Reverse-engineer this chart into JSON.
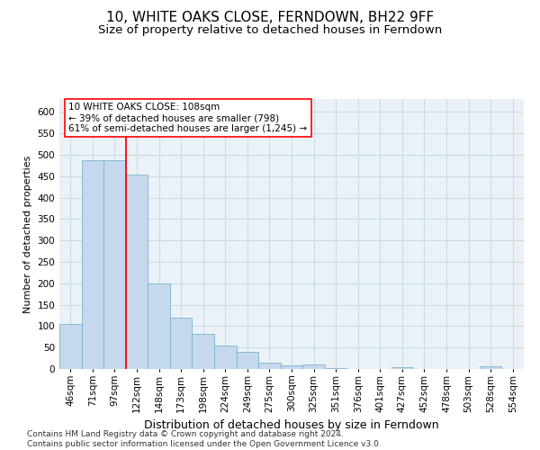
{
  "title": "10, WHITE OAKS CLOSE, FERNDOWN, BH22 9FF",
  "subtitle": "Size of property relative to detached houses in Ferndown",
  "xlabel": "Distribution of detached houses by size in Ferndown",
  "ylabel": "Number of detached properties",
  "categories": [
    "46sqm",
    "71sqm",
    "97sqm",
    "122sqm",
    "148sqm",
    "173sqm",
    "198sqm",
    "224sqm",
    "249sqm",
    "275sqm",
    "300sqm",
    "325sqm",
    "351sqm",
    "376sqm",
    "401sqm",
    "427sqm",
    "452sqm",
    "478sqm",
    "503sqm",
    "528sqm",
    "554sqm"
  ],
  "values": [
    105,
    487,
    487,
    453,
    200,
    120,
    82,
    55,
    40,
    14,
    9,
    11,
    2,
    0,
    0,
    5,
    0,
    0,
    0,
    6,
    0
  ],
  "bar_color": "#c5d8ed",
  "bar_edge_color": "#7ab3cc",
  "vline_x_index": 2.5,
  "vline_color": "red",
  "annotation_text": "10 WHITE OAKS CLOSE: 108sqm\n← 39% of detached houses are smaller (798)\n61% of semi-detached houses are larger (1,245) →",
  "ylim": [
    0,
    630
  ],
  "yticks": [
    0,
    50,
    100,
    150,
    200,
    250,
    300,
    350,
    400,
    450,
    500,
    550,
    600
  ],
  "grid_color": "#c8d8e8",
  "bg_color": "#eaf2f8",
  "footer": "Contains HM Land Registry data © Crown copyright and database right 2024.\nContains public sector information licensed under the Open Government Licence v3.0.",
  "title_fontsize": 11,
  "subtitle_fontsize": 9.5,
  "xlabel_fontsize": 9,
  "ylabel_fontsize": 8,
  "tick_fontsize": 7.5,
  "annotation_fontsize": 7.5,
  "footer_fontsize": 6.5
}
